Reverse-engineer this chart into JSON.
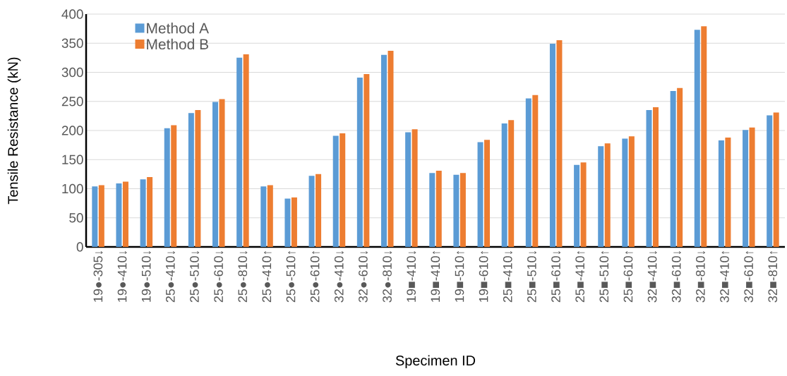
{
  "chart_data": {
    "type": "bar",
    "xlabel": "Specimen ID",
    "ylabel": "Tensile Resistance (kN)",
    "categories": [
      "19●-305↓",
      "19●-410↓",
      "19●-510↓",
      "25●-410↓",
      "25●-510↓",
      "25●-610↓",
      "25●-810↓",
      "25●-410↑",
      "25●-510↑",
      "25●-610↑",
      "32●-410↓",
      "32●-610↓",
      "32●-810↓",
      "19■-410↓",
      "19■-410↑",
      "19■-510↑",
      "19■-610↑",
      "25■-410↓",
      "25■-510↓",
      "25■-610↓",
      "25■-410↑",
      "25■-510↑",
      "25■-610↑",
      "32■-410↓",
      "32■-610↓",
      "32■-810↓",
      "32■-410↑",
      "32■-610↑",
      "32■-810↑"
    ],
    "series": [
      {
        "name": "Method A",
        "color": "#5b9bd5",
        "values": [
          104,
          109,
          116,
          204,
          230,
          249,
          325,
          104,
          83,
          122,
          191,
          291,
          330,
          197,
          127,
          124,
          180,
          212,
          255,
          349,
          141,
          173,
          186,
          235,
          268,
          373,
          183,
          201,
          226
        ]
      },
      {
        "name": "Method B",
        "color": "#ed7d31",
        "values": [
          106,
          112,
          120,
          209,
          235,
          254,
          331,
          106,
          85,
          125,
          195,
          297,
          337,
          202,
          131,
          127,
          184,
          218,
          261,
          355,
          145,
          178,
          190,
          240,
          273,
          379,
          188,
          205,
          231
        ]
      }
    ],
    "ylim": [
      0,
      400
    ],
    "yticks": [
      0,
      50,
      100,
      150,
      200,
      250,
      300,
      350,
      400
    ],
    "grid": "y",
    "legend": "top left"
  }
}
